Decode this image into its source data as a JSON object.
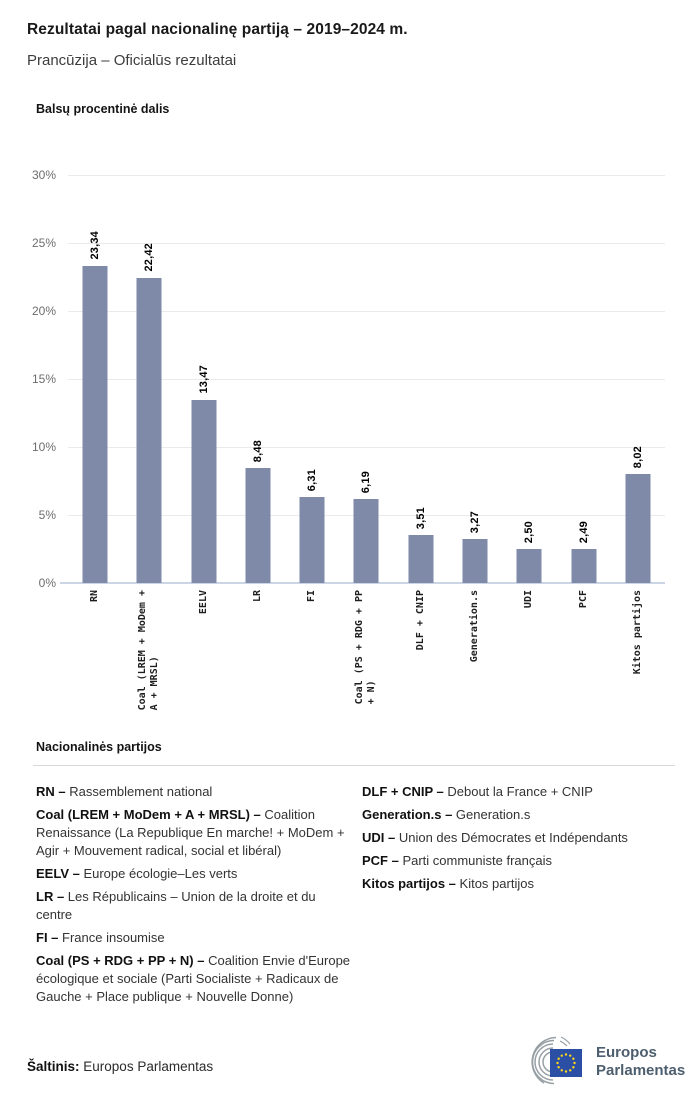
{
  "header": {
    "title": "Rezultatai pagal nacionalinę partiją – 2019–2024 m.",
    "subtitle": "Prancūzija – Oficialūs rezultatai"
  },
  "chart_data": {
    "type": "bar",
    "title": "Balsų procentinė dalis",
    "categories": [
      "RN",
      "Coal (LREM + MoDem + A + MRSL)",
      "EELV",
      "LR",
      "FI",
      "Coal (PS + RDG + PP + N)",
      "DLF + CNIP",
      "Generation.s",
      "UDI",
      "PCF",
      "Kitos partijos"
    ],
    "tick_labels": [
      "RN",
      "Coal (LREM + MoDem +\nA + MRSL)",
      "EELV",
      "LR",
      "FI",
      "Coal (PS + RDG + PP\n+ N)",
      "DLF + CNIP",
      "Generation.s",
      "UDI",
      "PCF",
      "Kitos partijos"
    ],
    "values": [
      23.34,
      22.42,
      13.47,
      8.48,
      6.31,
      6.19,
      3.51,
      3.27,
      2.5,
      2.49,
      8.02
    ],
    "value_labels": [
      "23,34",
      "22,42",
      "13,47",
      "8,48",
      "6,31",
      "6,19",
      "3,51",
      "3,27",
      "2,50",
      "2,49",
      "8,02"
    ],
    "xlabel": "",
    "ylabel": "Balsų procentinė dalis",
    "ylim": [
      0,
      30
    ],
    "ytick_step": 5,
    "ytick_labels": [
      "0%",
      "5%",
      "10%",
      "15%",
      "20%",
      "25%",
      "30%"
    ],
    "grid": true,
    "legend_position": "none",
    "bar_color": "#7e8aa8"
  },
  "legend": {
    "heading": "Nacionalinės partijos",
    "columns": [
      [
        {
          "key": "RN –",
          "desc": "Rassemblement national"
        },
        {
          "key": "Coal (LREM + MoDem + A + MRSL) –",
          "desc": "Coalition Renaissance (La Republique En marche! + MoDem + Agir + Mouvement radical, social et libéral)"
        },
        {
          "key": "EELV –",
          "desc": "Europe écologie–Les verts"
        },
        {
          "key": "LR –",
          "desc": "Les Républicains – Union de la droite et du centre"
        },
        {
          "key": "FI –",
          "desc": "France insoumise"
        },
        {
          "key": "Coal (PS + RDG + PP + N) –",
          "desc": "Coalition Envie d'Europe écologique et sociale (Parti Socialiste + Radicaux de Gauche + Place publique + Nouvelle Donne)"
        }
      ],
      [
        {
          "key": "DLF + CNIP –",
          "desc": "Debout la France + CNIP"
        },
        {
          "key": "Generation.s –",
          "desc": "Generation.s"
        },
        {
          "key": "UDI –",
          "desc": "Union des Démocrates et Indépendants"
        },
        {
          "key": "PCF –",
          "desc": "Parti communiste français"
        },
        {
          "key": "Kitos partijos –",
          "desc": "Kitos partijos"
        }
      ]
    ]
  },
  "footer": {
    "source_label": "Šaltinis:",
    "source_value": "Europos Parlamentas",
    "logo_line1": "Europos",
    "logo_line2": "Parlamentas"
  },
  "colors": {
    "bar": "#7e8aa8",
    "grid": "#eaeaea",
    "baseline": "#ccd5e6",
    "flag_blue": "#2a4fa5",
    "star_yellow": "#ffd617",
    "logo_gray": "#97a0a5",
    "logo_text": "#4d5e6e"
  }
}
